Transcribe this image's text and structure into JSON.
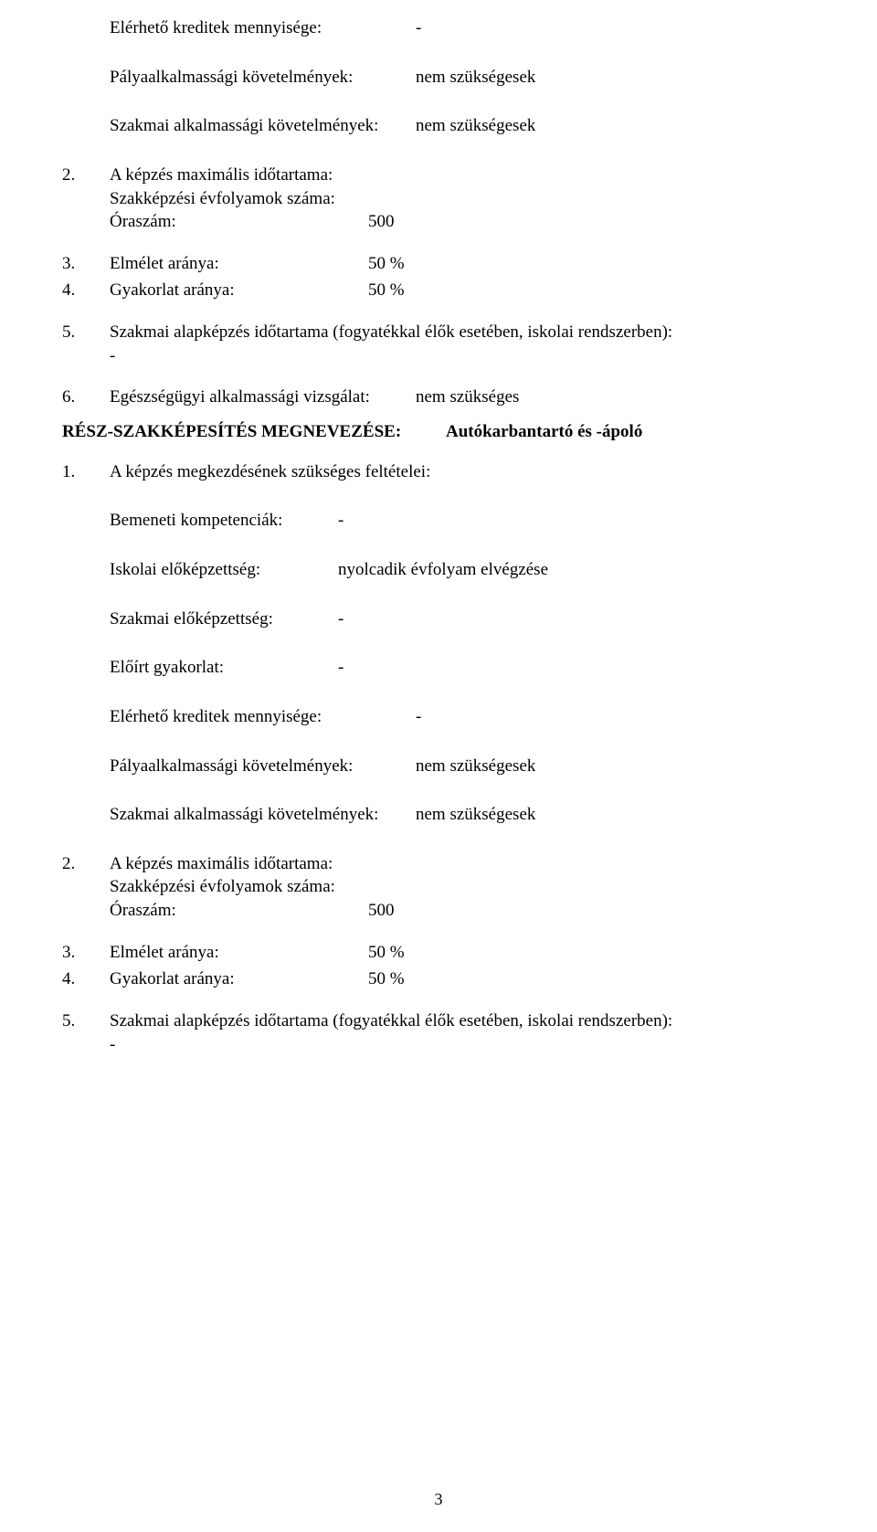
{
  "top": {
    "credits_label": "Elérhető kreditek mennyisége:",
    "credits_value": "-",
    "career_req_label": "Pályaalkalmassági követelmények:",
    "career_req_value": "nem szükségesek",
    "prof_req_label": "Szakmai alkalmassági követelmények:",
    "prof_req_value": "nem szükségesek"
  },
  "list1": {
    "item2": {
      "num": "2.",
      "line1": "A képzés maximális időtartama:",
      "line2": "Szakképzési évfolyamok száma:",
      "hours_label": "Óraszám:",
      "hours_value": "500"
    },
    "item3": {
      "num": "3.",
      "label": "Elmélet aránya:",
      "value": "50 %"
    },
    "item4": {
      "num": "4.",
      "label": "Gyakorlat aránya:",
      "value": "50 %"
    },
    "item5": {
      "num": "5.",
      "text": "Szakmai alapképzés időtartama (fogyatékkal élők esetében, iskolai rendszerben):",
      "dash": "-"
    },
    "item6": {
      "num": "6.",
      "label": "Egészségügyi alkalmassági vizsgálat:",
      "value": "nem szükséges"
    }
  },
  "section": {
    "title": "RÉSZ-SZAKKÉPESÍTÉS MEGNEVEZÉSE:",
    "subtitle": "Autókarbantartó és -ápoló"
  },
  "sub": {
    "item1": {
      "num": "1.",
      "text": "A képzés megkezdésének szükséges feltételei:"
    },
    "competencies_label": "Bemeneti kompetenciák:",
    "competencies_value": "-",
    "school_label": "Iskolai előképzettség:",
    "school_value": "nyolcadik évfolyam elvégzése",
    "prof_pre_label": "Szakmai előképzettség:",
    "prof_pre_value": "-",
    "practice_label": "Előírt gyakorlat:",
    "practice_value": "-",
    "credits_label": "Elérhető kreditek mennyisége:",
    "credits_value": "-",
    "career_req_label": "Pályaalkalmassági követelmények:",
    "career_req_value": "nem szükségesek",
    "prof_req_label": "Szakmai alkalmassági követelmények:",
    "prof_req_value": "nem szükségesek"
  },
  "list2": {
    "item2": {
      "num": "2.",
      "line1": "A képzés maximális időtartama:",
      "line2": "Szakképzési évfolyamok száma:",
      "hours_label": "Óraszám:",
      "hours_value": "500"
    },
    "item3": {
      "num": "3.",
      "label": "Elmélet aránya:",
      "value": "50 %"
    },
    "item4": {
      "num": "4.",
      "label": "Gyakorlat aránya:",
      "value": "50 %"
    },
    "item5": {
      "num": "5.",
      "text": "Szakmai alapképzés időtartama (fogyatékkal élők esetében, iskolai rendszerben):",
      "dash": "-"
    }
  },
  "page_number": "3"
}
